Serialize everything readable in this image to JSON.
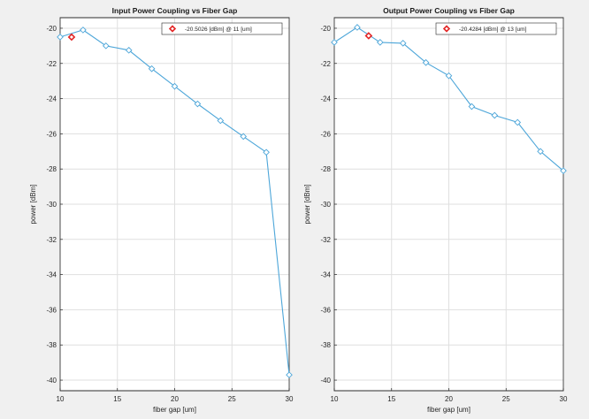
{
  "colors": {
    "series_line": "#4da6d9",
    "highlight_marker": "#e32626",
    "axes_background": "#ffffff",
    "figure_background": "#f0f0f0",
    "grid": "#dfdfdf"
  },
  "chart_data": [
    {
      "type": "line",
      "title": "Input Power Coupling vs Fiber Gap",
      "xlabel": "fiber gap [um]",
      "ylabel": "power [dBm]",
      "xlim": [
        10,
        30
      ],
      "ylim": [
        -40.6,
        -19.4
      ],
      "xticks": [
        10,
        15,
        20,
        25,
        30
      ],
      "yticks": [
        -40,
        -38,
        -36,
        -34,
        -32,
        -30,
        -28,
        -26,
        -24,
        -22,
        -20
      ],
      "grid": true,
      "x": [
        10,
        12,
        14,
        16,
        18,
        20,
        22,
        24,
        26,
        28,
        30
      ],
      "series": [
        {
          "values": [
            -20.5,
            -20.1,
            -21.0,
            -21.25,
            -22.3,
            -23.3,
            -24.3,
            -25.25,
            -26.15,
            -27.05,
            -39.7
          ]
        }
      ],
      "highlight": {
        "x": 11,
        "y": -20.5026
      },
      "legend": {
        "position": "top-right",
        "entries": [
          "-20.5026 [dBm] @ 11 [um]"
        ]
      }
    },
    {
      "type": "line",
      "title": "Output Power Coupling vs Fiber Gap",
      "xlabel": "fiber gap [um]",
      "ylabel": "power [dBm]",
      "xlim": [
        10,
        30
      ],
      "ylim": [
        -40.6,
        -19.4
      ],
      "xticks": [
        10,
        15,
        20,
        25,
        30
      ],
      "yticks": [
        -40,
        -38,
        -36,
        -34,
        -32,
        -30,
        -28,
        -26,
        -24,
        -22,
        -20
      ],
      "grid": true,
      "x": [
        10,
        12,
        14,
        16,
        18,
        20,
        22,
        24,
        26,
        28,
        30
      ],
      "series": [
        {
          "values": [
            -20.8,
            -19.95,
            -20.8,
            -20.85,
            -21.95,
            -22.7,
            -24.45,
            -24.95,
            -25.35,
            -27.0,
            -28.1
          ]
        }
      ],
      "highlight": {
        "x": 13,
        "y": -20.4284
      },
      "legend": {
        "position": "top-right",
        "entries": [
          "-20.4284 [dBm] @ 13 [um]"
        ]
      }
    }
  ]
}
